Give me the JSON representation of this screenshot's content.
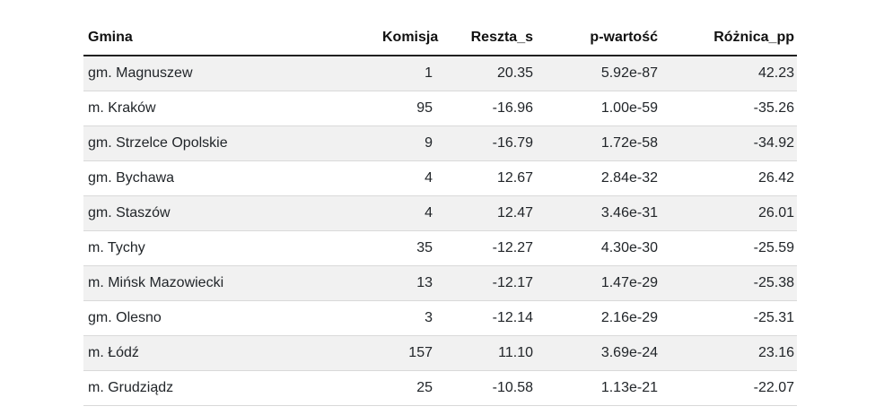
{
  "colors": {
    "stripe_bg": "#f1f1f1",
    "row_border": "#d9d9d9",
    "header_border": "#212121",
    "text": "#212529"
  },
  "chart_data": {
    "type": "table",
    "title": "",
    "columns": [
      {
        "id": "gmina",
        "label": "Gmina",
        "align": "left"
      },
      {
        "id": "komisja",
        "label": "Komisja",
        "align": "right"
      },
      {
        "id": "reszta-s",
        "label": "Reszta_s",
        "align": "right"
      },
      {
        "id": "p-wartosc",
        "label": "p-wartość",
        "align": "right"
      },
      {
        "id": "roznica-pp",
        "label": "Różnica_pp",
        "align": "right"
      }
    ],
    "rows": [
      [
        "gm. Magnuszew",
        "1",
        "20.35",
        "5.92e-87",
        "42.23"
      ],
      [
        "m. Kraków",
        "95",
        "-16.96",
        "1.00e-59",
        "-35.26"
      ],
      [
        "gm. Strzelce Opolskie",
        "9",
        "-16.79",
        "1.72e-58",
        "-34.92"
      ],
      [
        "gm. Bychawa",
        "4",
        "12.67",
        "2.84e-32",
        "26.42"
      ],
      [
        "gm. Staszów",
        "4",
        "12.47",
        "3.46e-31",
        "26.01"
      ],
      [
        "m. Tychy",
        "35",
        "-12.27",
        "4.30e-30",
        "-25.59"
      ],
      [
        "m. Mińsk Mazowiecki",
        "13",
        "-12.17",
        "1.47e-29",
        "-25.38"
      ],
      [
        "gm. Olesno",
        "3",
        "-12.14",
        "2.16e-29",
        "-25.31"
      ],
      [
        "m. Łódź",
        "157",
        "11.10",
        "3.69e-24",
        "23.16"
      ],
      [
        "m. Grudziądz",
        "25",
        "-10.58",
        "1.13e-21",
        "-22.07"
      ]
    ]
  }
}
